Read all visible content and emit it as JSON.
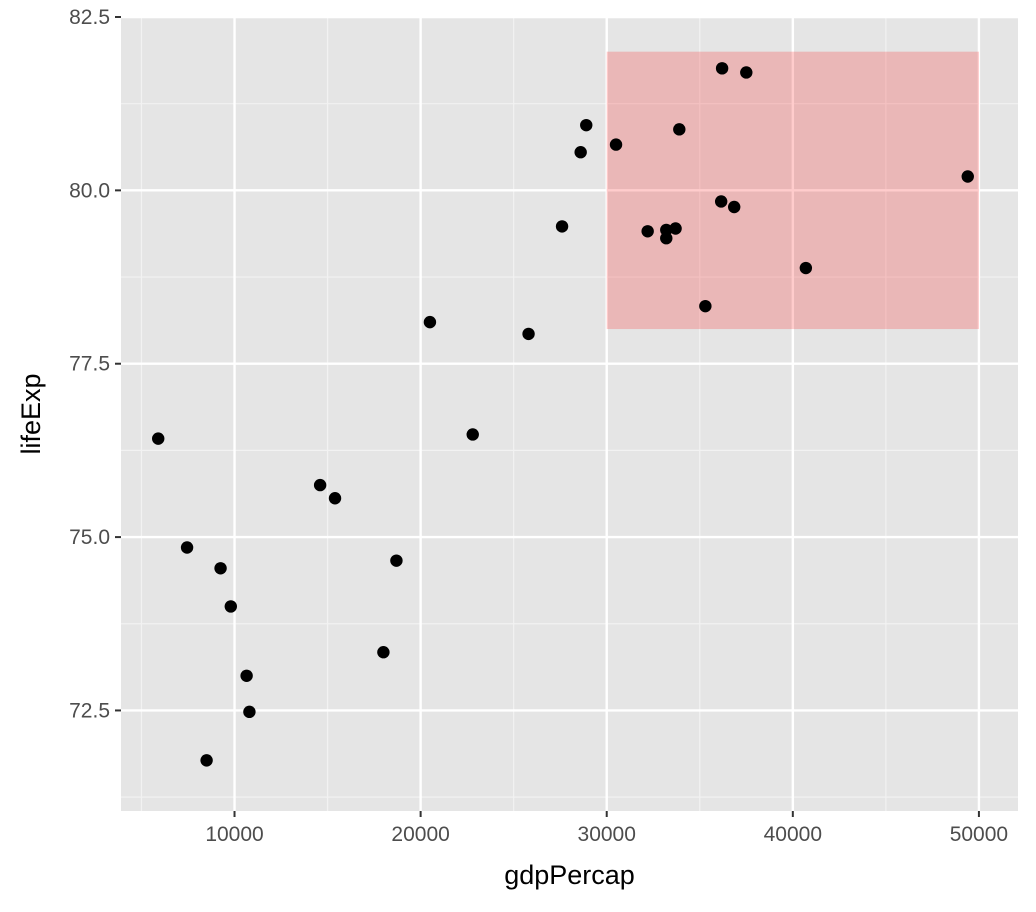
{
  "chart_data": {
    "type": "scatter",
    "title": "",
    "xlabel": "gdpPercap",
    "ylabel": "lifeExp",
    "xlim": [
      3900,
      52100
    ],
    "ylim": [
      71.05,
      82.5
    ],
    "xticks": [
      10000,
      20000,
      30000,
      40000,
      50000
    ],
    "xtick_labels": [
      "10000",
      "20000",
      "30000",
      "40000",
      "50000"
    ],
    "yticks": [
      72.5,
      75.0,
      77.5,
      80.0,
      82.5
    ],
    "ytick_labels": [
      "72.5",
      "75.0",
      "77.5",
      "80.0",
      "82.5"
    ],
    "grid": true,
    "legend": "none",
    "highlight_rect": {
      "x": [
        30000,
        50000
      ],
      "y": [
        78.0,
        82.0
      ],
      "color": "#ff0000",
      "opacity": 0.2
    },
    "point_color": "#000000",
    "panel_color": "#e5e5e5",
    "points": [
      {
        "x": 5900,
        "y": 76.42
      },
      {
        "x": 7450,
        "y": 74.85
      },
      {
        "x": 9250,
        "y": 74.55
      },
      {
        "x": 9800,
        "y": 74.0
      },
      {
        "x": 8500,
        "y": 71.78
      },
      {
        "x": 10650,
        "y": 73.0
      },
      {
        "x": 10800,
        "y": 72.48
      },
      {
        "x": 14600,
        "y": 75.75
      },
      {
        "x": 15400,
        "y": 75.56
      },
      {
        "x": 18000,
        "y": 73.34
      },
      {
        "x": 18700,
        "y": 74.66
      },
      {
        "x": 20500,
        "y": 78.1
      },
      {
        "x": 22800,
        "y": 76.48
      },
      {
        "x": 25800,
        "y": 77.93
      },
      {
        "x": 27600,
        "y": 79.48
      },
      {
        "x": 28600,
        "y": 80.55
      },
      {
        "x": 28900,
        "y": 80.94
      },
      {
        "x": 30500,
        "y": 80.66
      },
      {
        "x": 32200,
        "y": 79.41
      },
      {
        "x": 33200,
        "y": 79.43
      },
      {
        "x": 33200,
        "y": 79.31
      },
      {
        "x": 33700,
        "y": 79.45
      },
      {
        "x": 33900,
        "y": 80.88
      },
      {
        "x": 35300,
        "y": 78.33
      },
      {
        "x": 36150,
        "y": 79.84
      },
      {
        "x": 36200,
        "y": 81.76
      },
      {
        "x": 36850,
        "y": 79.76
      },
      {
        "x": 37500,
        "y": 81.7
      },
      {
        "x": 40700,
        "y": 78.88
      },
      {
        "x": 49400,
        "y": 80.2
      }
    ]
  }
}
